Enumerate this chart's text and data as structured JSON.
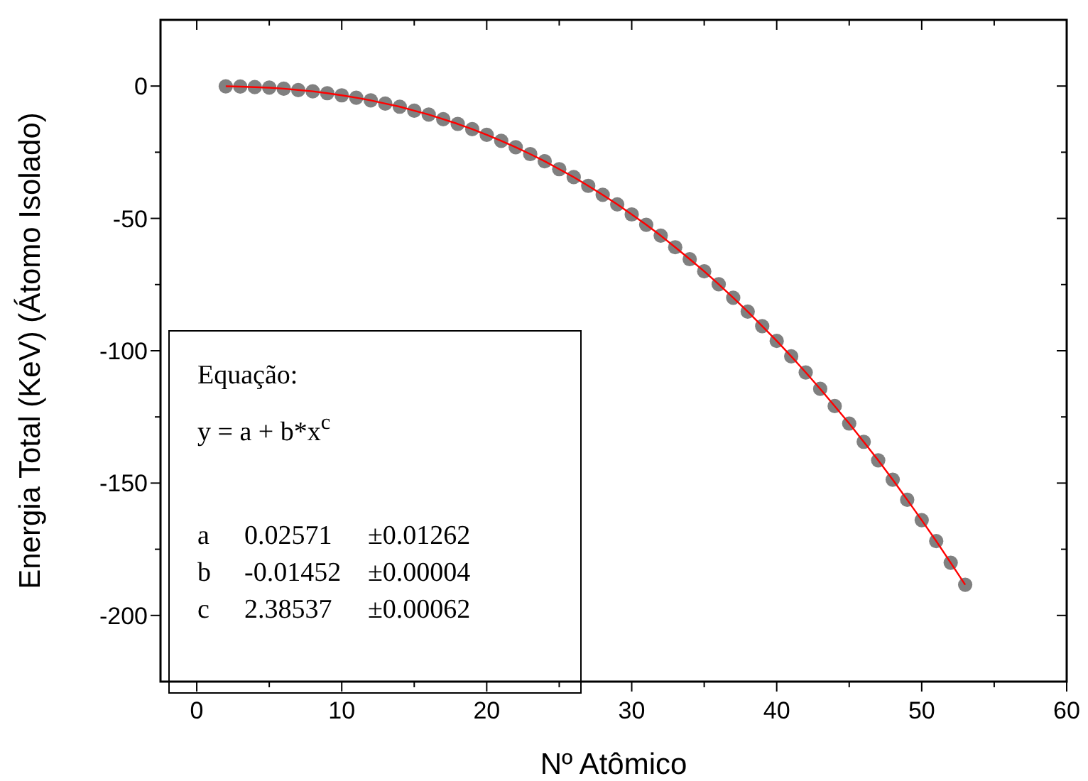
{
  "chart_data": {
    "type": "scatter",
    "xlabel": "Nº Atômico",
    "ylabel": "Energia Total (KeV) (Átomo Isolado)",
    "xlim": [
      -2.5,
      60
    ],
    "xticks": [
      0,
      {
        "value": 5,
        "label": null
      },
      10,
      {
        "value": 15,
        "label": null
      },
      20,
      {
        "value": 25,
        "label": null
      },
      30,
      {
        "value": 35,
        "label": null
      },
      40,
      {
        "value": 45,
        "label": null
      },
      50,
      {
        "value": 55,
        "label": null
      },
      60
    ],
    "ylim": [
      -225,
      25
    ],
    "yticks": [
      0,
      {
        "value": -25,
        "label": null
      },
      -50,
      {
        "value": -75,
        "label": null
      },
      -100,
      {
        "value": -125,
        "label": null
      },
      -150,
      {
        "value": -175,
        "label": null
      },
      -200
    ],
    "marker": "circle",
    "grid": false,
    "x": [
      2,
      3,
      4,
      5,
      6,
      7,
      8,
      9,
      10,
      11,
      12,
      13,
      14,
      15,
      16,
      17,
      18,
      19,
      20,
      21,
      22,
      23,
      24,
      25,
      26,
      27,
      28,
      29,
      30,
      31,
      32,
      33,
      34,
      35,
      36,
      37,
      38,
      39,
      40,
      41,
      42,
      43,
      44,
      45,
      46,
      47,
      48,
      49,
      50,
      51,
      52,
      53
    ],
    "series": [
      {
        "color": "#808080",
        "values": [
          -0.1,
          -0.2,
          -0.4,
          -0.6,
          -1.0,
          -1.5,
          -2.0,
          -2.7,
          -3.5,
          -4.4,
          -5.4,
          -6.6,
          -7.8,
          -9.3,
          -10.8,
          -12.5,
          -14.3,
          -16.3,
          -18.4,
          -20.7,
          -23.1,
          -25.7,
          -28.4,
          -31.4,
          -34.4,
          -37.7,
          -41.1,
          -44.7,
          -48.5,
          -52.4,
          -56.5,
          -60.9,
          -65.4,
          -70.0,
          -74.9,
          -80.0,
          -85.2,
          -90.7,
          -96.3,
          -102.1,
          -108.2,
          -114.4,
          -120.9,
          -127.5,
          -134.4,
          -141.4,
          -148.7,
          -156.3,
          -164.0,
          -171.9,
          -180.1,
          -188.4
        ]
      },
      {
        "type": "line",
        "color": "#ff0000",
        "line_style": "solid",
        "marker": "none",
        "values": [
          -0.1,
          -0.2,
          -0.4,
          -0.6,
          -1.0,
          -1.5,
          -2.0,
          -2.7,
          -3.5,
          -4.4,
          -5.4,
          -6.6,
          -7.8,
          -9.3,
          -10.8,
          -12.5,
          -14.3,
          -16.3,
          -18.4,
          -20.7,
          -23.1,
          -25.7,
          -28.4,
          -31.4,
          -34.4,
          -37.7,
          -41.1,
          -44.7,
          -48.5,
          -52.4,
          -56.5,
          -60.9,
          -65.4,
          -70.0,
          -74.9,
          -80.0,
          -85.2,
          -90.7,
          -96.3,
          -102.1,
          -108.2,
          -114.4,
          -120.9,
          -127.5,
          -134.4,
          -141.4,
          -148.7,
          -156.3,
          -164.0,
          -171.9,
          -180.1,
          -188.4
        ]
      }
    ],
    "annotations": [
      "Equação:",
      "y = a + b*x$^{c}$",
      "a",
      "0.02571",
      "±0.01262",
      "b",
      "-0.01452",
      "±0.00004",
      "c",
      "2.38537",
      "±0.00062"
    ]
  }
}
